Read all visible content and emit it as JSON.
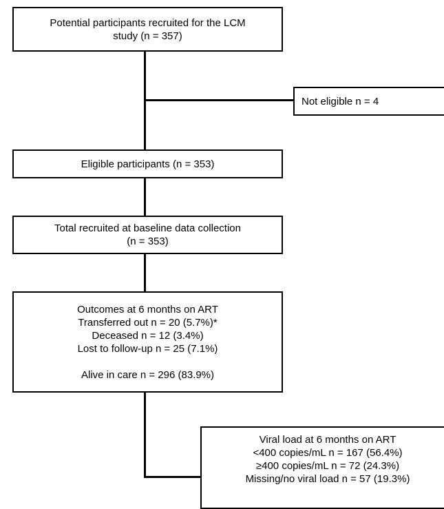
{
  "boxes": {
    "recruited": {
      "lines": [
        "Potential participants recruited for the LCM",
        "study (n = 357)"
      ]
    },
    "not_eligible": {
      "lines": [
        "Not eligible n = 4"
      ]
    },
    "eligible": {
      "lines": [
        "Eligible participants (n = 353)"
      ]
    },
    "baseline": {
      "lines": [
        "Total recruited at baseline data collection",
        "(n = 353)"
      ]
    },
    "outcomes": {
      "lines": [
        "Outcomes at 6 months on ART",
        "Transferred out n = 20 (5.7%)*",
        "Deceased n = 12 (3.4%)",
        "Lost to follow-up n = 25 (7.1%)",
        "Alive in care n = 296 (83.9%)"
      ]
    },
    "viral_load": {
      "lines": [
        "Viral load at 6 months on ART",
        "<400 copies/mL n = 167 (56.4%)",
        "≥400 copies/mL n = 72 (24.3%)",
        "Missing/no viral load n = 57 (19.3%)"
      ]
    }
  }
}
